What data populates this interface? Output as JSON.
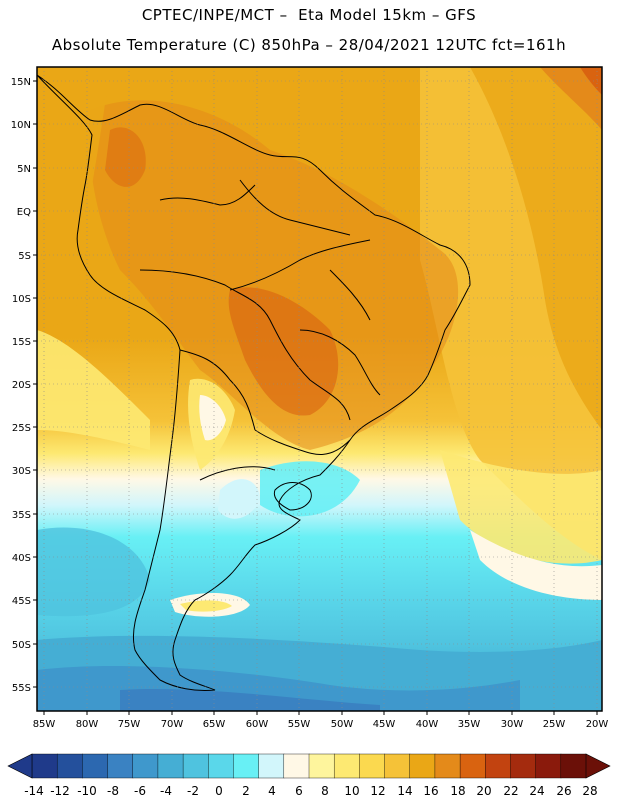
{
  "header": {
    "line1": "CPTEC/INPE/MCT –  Eta Model 15km – GFS",
    "line2": "Absolute Temperature (C) 850hPa – 28/04/2021 12UTC fct=161h"
  },
  "map": {
    "lat_labels": [
      "15N",
      "10N",
      "5N",
      "EQ",
      "5S",
      "10S",
      "15S",
      "20S",
      "25S",
      "30S",
      "35S",
      "40S",
      "45S",
      "50S",
      "55S"
    ],
    "lon_labels": [
      "85W",
      "80W",
      "75W",
      "70W",
      "65W",
      "60W",
      "55W",
      "50W",
      "45W",
      "40W",
      "35W",
      "30W",
      "25W",
      "20W"
    ]
  },
  "colorbar": {
    "labels": [
      "-14",
      "-12",
      "-10",
      "-8",
      "-6",
      "-4",
      "-2",
      "0",
      "2",
      "4",
      "6",
      "8",
      "10",
      "12",
      "14",
      "16",
      "18",
      "20",
      "22",
      "24",
      "26",
      "28"
    ],
    "colors": [
      "#1f3a8a",
      "#24509c",
      "#2c68b0",
      "#3a82c2",
      "#3f98cc",
      "#45aed4",
      "#4fc3df",
      "#5ad7ea",
      "#68f0f5",
      "#d2f6fb",
      "#fff8e6",
      "#fef59d",
      "#fde972",
      "#fbd94f",
      "#f5c238",
      "#eaa716",
      "#e48a1a",
      "#d96310",
      "#c24310",
      "#a42b0e",
      "#8a1a0c",
      "#6b1008"
    ]
  }
}
